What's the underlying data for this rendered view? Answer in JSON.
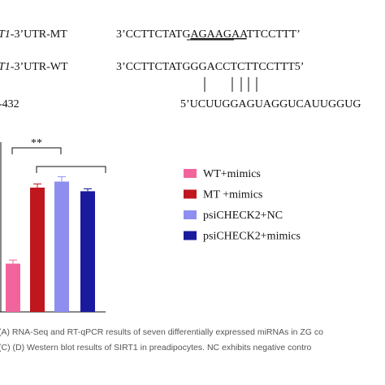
{
  "sequences": {
    "mt_label": [
      "T1",
      "-3’UTR-MT"
    ],
    "mt_sequence": [
      "3’CCTTCTATG",
      "AGAAGAA",
      "TTCCTTT’"
    ],
    "wt_label": [
      "T1",
      "-3’UTR-WT"
    ],
    "wt_sequence": "3’CCTTCTATGGGACCTCTTCCTTT5’",
    "mirna_label": "-432",
    "mirna_sequence": "5’UCUUGGAGUAGGUCAUUGGUG"
  },
  "chart_data": {
    "type": "bar",
    "annotation": "**",
    "series": [
      {
        "name": "WT+mimics",
        "color": "#f2649c",
        "values": [
          0.4
        ],
        "errors": [
          0.03
        ]
      },
      {
        "name": "MT +mimics",
        "color": "#c0161e",
        "values": [
          1.03
        ],
        "errors": [
          0.03
        ]
      },
      {
        "name": "psiCHECK2+NC",
        "color": "#8e8ef0",
        "values": [
          1.08
        ],
        "errors": [
          0.04
        ]
      },
      {
        "name": "psiCHECK2+mimics",
        "color": "#1a1a9e",
        "values": [
          1.0
        ],
        "errors": [
          0.02
        ]
      }
    ],
    "ylim": [
      0,
      1.4
    ]
  },
  "caption": [
    "(A) RNA-Seq and RT-qPCR results of seven differentially expressed miRNAs in ZG co",
    "(C) (D) Western blot results of SIRT1 in preadipocytes. NC exhibits negative contro"
  ]
}
